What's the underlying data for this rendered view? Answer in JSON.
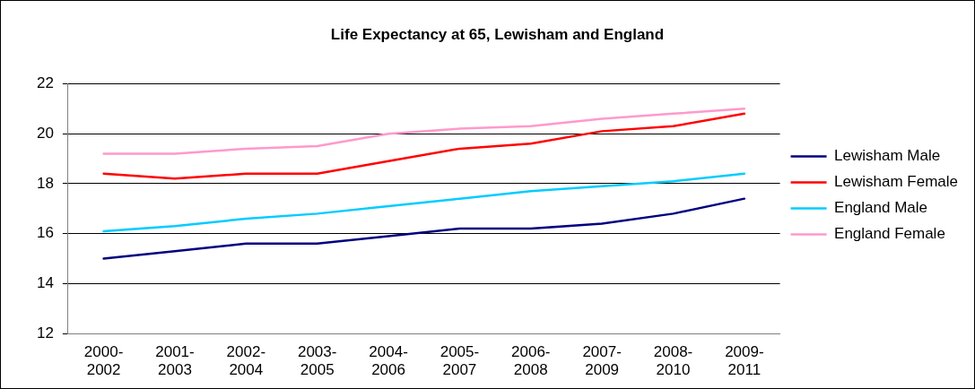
{
  "chart_data": {
    "type": "line",
    "title": "Life Expectancy at 65, Lewisham and England",
    "categories": [
      "2000-2002",
      "2001-2003",
      "2002-2004",
      "2003-2005",
      "2004-2006",
      "2005-2007",
      "2006-2008",
      "2007-2009",
      "2008-2010",
      "2009-2011"
    ],
    "series": [
      {
        "name": "Lewisham Male",
        "color": "#000080",
        "values": [
          15.0,
          15.3,
          15.6,
          15.6,
          15.9,
          16.2,
          16.2,
          16.4,
          16.8,
          17.4
        ]
      },
      {
        "name": "Lewisham Female",
        "color": "#ff0000",
        "values": [
          18.4,
          18.2,
          18.4,
          18.4,
          18.9,
          19.4,
          19.6,
          20.1,
          20.3,
          20.8
        ]
      },
      {
        "name": "England Male",
        "color": "#00ccff",
        "values": [
          16.1,
          16.3,
          16.6,
          16.8,
          17.1,
          17.4,
          17.7,
          17.9,
          18.1,
          18.4
        ]
      },
      {
        "name": "England Female",
        "color": "#ff99cc",
        "values": [
          19.2,
          19.2,
          19.4,
          19.5,
          20.0,
          20.2,
          20.3,
          20.6,
          20.8,
          21.0
        ]
      }
    ],
    "ylim": [
      12,
      22
    ],
    "yticks": [
      12,
      14,
      16,
      18,
      20,
      22
    ],
    "grid": "y",
    "legend": "right",
    "marker": "none",
    "line_style": "solid"
  }
}
